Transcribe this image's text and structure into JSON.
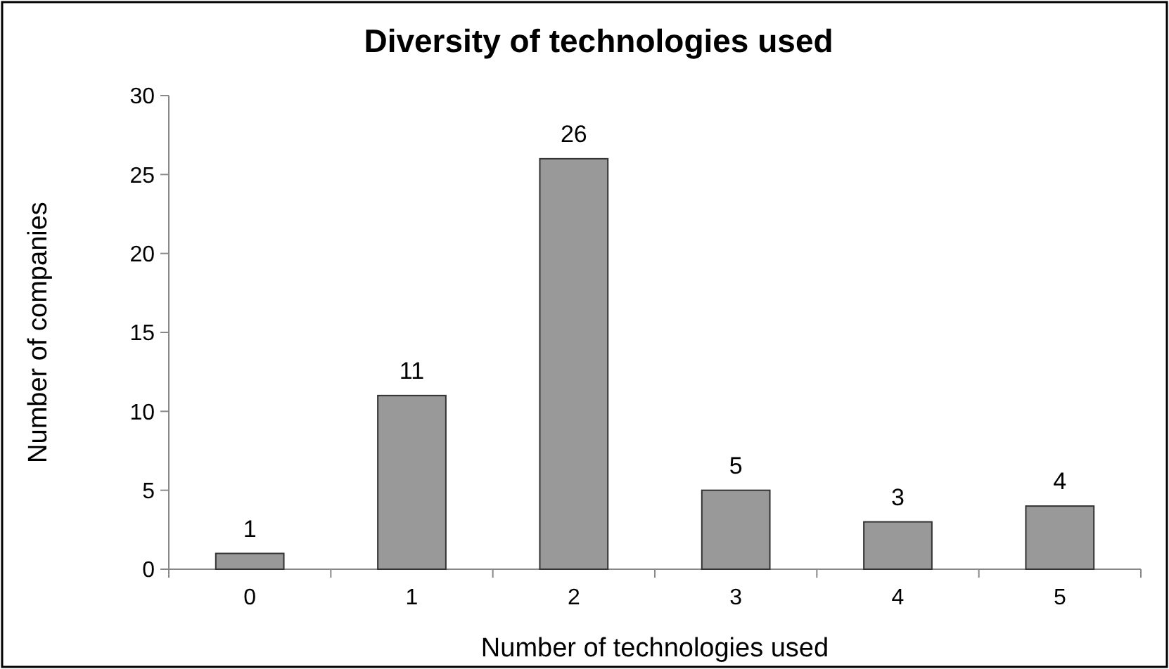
{
  "chart_data": {
    "type": "bar",
    "title": "Diversity of technologies used",
    "xlabel": "Number of technologies used",
    "ylabel": "Number of companies",
    "categories": [
      "0",
      "1",
      "2",
      "3",
      "4",
      "5"
    ],
    "values": [
      1,
      11,
      26,
      5,
      3,
      4
    ],
    "color": "#999999",
    "ylim": [
      0,
      30
    ],
    "yticks": [
      0,
      5,
      10,
      15,
      20,
      25,
      30
    ],
    "grid": false,
    "data_labels": true
  }
}
